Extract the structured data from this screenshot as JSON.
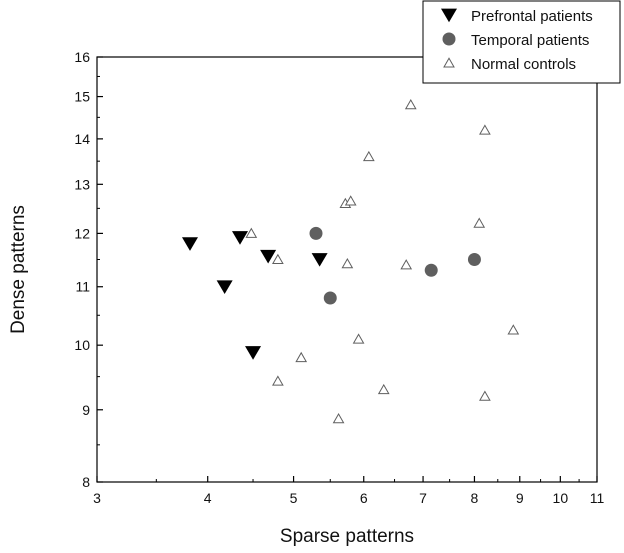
{
  "chart_data": {
    "type": "scatter",
    "xlabel": "Sparse patterns",
    "ylabel": "Dense patterns",
    "x_scale": "log",
    "y_scale": "log",
    "xlim": [
      3,
      11
    ],
    "ylim": [
      8,
      16
    ],
    "x_ticks": [
      "3",
      "4",
      "5",
      "6",
      "7",
      "8",
      "9",
      "10",
      "11"
    ],
    "y_ticks": [
      "8",
      "9",
      "10",
      "11",
      "12",
      "13",
      "14",
      "15",
      "16"
    ],
    "grid": false,
    "legend_position": "top-right",
    "series": [
      {
        "name": "Prefrontal patients",
        "marker": "triangle-down",
        "color": "#000000",
        "points": [
          {
            "x": 3.82,
            "y": 11.8
          },
          {
            "x": 4.18,
            "y": 11.0
          },
          {
            "x": 4.35,
            "y": 11.92
          },
          {
            "x": 4.5,
            "y": 9.88
          },
          {
            "x": 4.68,
            "y": 11.56
          },
          {
            "x": 5.35,
            "y": 11.5
          }
        ]
      },
      {
        "name": "Temporal patients",
        "marker": "circle",
        "color": "#5f5f5f",
        "points": [
          {
            "x": 5.3,
            "y": 12.0
          },
          {
            "x": 5.5,
            "y": 10.8
          },
          {
            "x": 7.15,
            "y": 11.3
          },
          {
            "x": 8.0,
            "y": 11.5
          }
        ]
      },
      {
        "name": "Normal controls",
        "marker": "triangle-up-open",
        "color": "#5f5f5f",
        "points": [
          {
            "x": 4.48,
            "y": 12.0
          },
          {
            "x": 4.8,
            "y": 11.5
          },
          {
            "x": 4.8,
            "y": 9.43
          },
          {
            "x": 5.1,
            "y": 9.8
          },
          {
            "x": 5.62,
            "y": 8.87
          },
          {
            "x": 5.72,
            "y": 12.6
          },
          {
            "x": 5.8,
            "y": 12.65
          },
          {
            "x": 5.75,
            "y": 11.42
          },
          {
            "x": 5.92,
            "y": 10.1
          },
          {
            "x": 6.08,
            "y": 13.6
          },
          {
            "x": 6.32,
            "y": 9.3
          },
          {
            "x": 6.7,
            "y": 11.4
          },
          {
            "x": 6.78,
            "y": 14.8
          },
          {
            "x": 8.1,
            "y": 12.2
          },
          {
            "x": 8.22,
            "y": 14.2
          },
          {
            "x": 8.22,
            "y": 9.2
          },
          {
            "x": 8.85,
            "y": 10.25
          }
        ]
      }
    ]
  }
}
